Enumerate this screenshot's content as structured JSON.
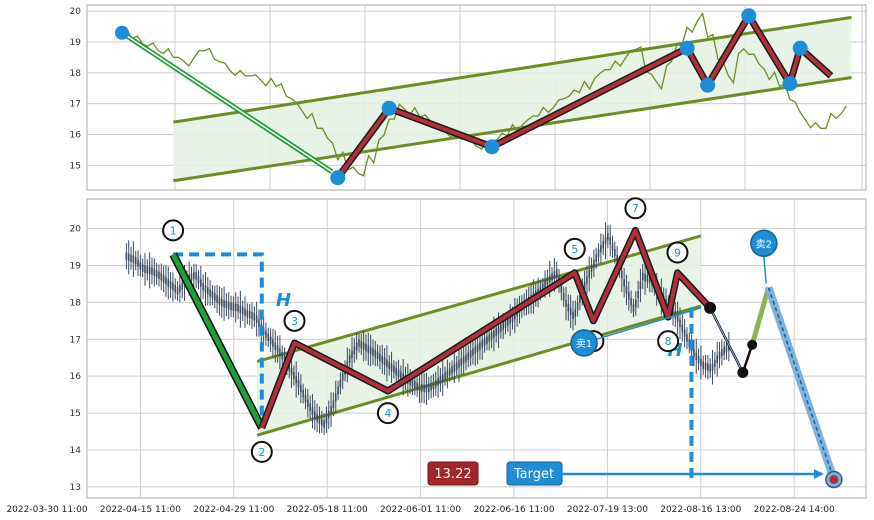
{
  "chart_data": [
    {
      "type": "line",
      "panel": "top",
      "ylim": [
        14.2,
        20.2
      ],
      "yticks": [
        15,
        16,
        17,
        18,
        19,
        20
      ],
      "grid": true,
      "series": [
        {
          "role": "close-line",
          "color": "#6b8e23",
          "values": [
            19.25,
            19.15,
            18.9,
            18.85,
            18.7,
            18.5,
            18.3,
            18.6,
            18.75,
            18.4,
            18.2,
            18.0,
            17.9,
            17.85,
            17.7,
            17.6,
            17.2,
            16.9,
            16.6,
            16.2,
            15.8,
            15.3,
            14.9,
            14.7,
            15.2,
            15.9,
            16.5,
            16.9,
            16.75,
            16.6,
            16.4,
            16.2,
            16.0,
            15.85,
            15.7,
            15.65,
            15.8,
            16.0,
            16.2,
            16.4,
            16.6,
            16.8,
            17.0,
            17.2,
            17.4,
            17.6,
            17.9,
            18.1,
            18.3,
            18.6,
            18.8,
            18.0,
            17.6,
            18.3,
            18.9,
            19.4,
            19.8,
            19.2,
            18.4,
            17.8,
            18.7,
            18.6,
            18.2,
            17.9,
            17.6,
            17.1,
            16.6,
            16.3,
            16.2,
            16.6,
            16.8
          ]
        }
      ],
      "channel_upper": [
        [
          6,
          16.4
        ],
        [
          72,
          19.8
        ]
      ],
      "channel_lower": [
        [
          6,
          14.5
        ],
        [
          72,
          17.85
        ]
      ],
      "zigzag": [
        [
          22,
          14.6
        ],
        [
          27,
          16.85
        ],
        [
          37,
          15.6
        ],
        [
          56,
          18.8
        ],
        [
          58,
          17.6
        ],
        [
          62,
          19.85
        ],
        [
          66,
          17.65
        ],
        [
          67,
          18.8
        ],
        [
          70,
          17.9
        ]
      ],
      "markers": [
        [
          22,
          14.6
        ],
        [
          27,
          16.85
        ],
        [
          37,
          15.6
        ],
        [
          56,
          18.8
        ],
        [
          58,
          17.6
        ],
        [
          62,
          19.85
        ],
        [
          66,
          17.65
        ],
        [
          67,
          18.8
        ]
      ],
      "green_arrow": [
        [
          1,
          19.3
        ],
        [
          22,
          14.6
        ]
      ],
      "start_marker": [
        1,
        19.3
      ]
    },
    {
      "type": "candlestick",
      "panel": "bottom",
      "ylim": [
        12.7,
        20.8
      ],
      "yticks": [
        13,
        14,
        15,
        16,
        17,
        18,
        19,
        20
      ],
      "grid": true,
      "x_labels": [
        "2022-03-30 11:00",
        "2022-04-15 11:00",
        "2022-04-29 11:00",
        "2022-05-18 11:00",
        "2022-06-01 11:00",
        "2022-06-16 11:00",
        "2022-07-19 13:00",
        "2022-08-16 13:00",
        "2022-08-24 14:00"
      ],
      "x_label_index": [
        0,
        2,
        4,
        6,
        8,
        10,
        12,
        14,
        16
      ],
      "points": [
        {
          "label": "1",
          "x": 2.7,
          "y": 19.3,
          "label_y": 19.95
        },
        {
          "label": "2",
          "x": 4.6,
          "y": 14.6,
          "label_y": 13.95
        },
        {
          "label": "3",
          "x": 5.3,
          "y": 16.9,
          "label_y": 17.5
        },
        {
          "label": "4",
          "x": 7.3,
          "y": 15.6,
          "label_y": 15.0
        },
        {
          "label": "5",
          "x": 11.3,
          "y": 18.8,
          "label_y": 19.45
        },
        {
          "label": "6",
          "x": 11.7,
          "y": 17.5,
          "label_y": 16.95
        },
        {
          "label": "7",
          "x": 12.6,
          "y": 19.95,
          "label_y": 20.55
        },
        {
          "label": "8",
          "x": 13.3,
          "y": 17.6,
          "label_y": 16.95
        },
        {
          "label": "9",
          "x": 13.5,
          "y": 18.8,
          "label_y": 19.35
        }
      ],
      "zigzag": [
        [
          4.6,
          14.6
        ],
        [
          5.3,
          16.9
        ],
        [
          7.3,
          15.6
        ],
        [
          11.3,
          18.8
        ],
        [
          11.7,
          17.5
        ],
        [
          12.6,
          19.95
        ],
        [
          13.3,
          17.6
        ],
        [
          13.5,
          18.8
        ],
        [
          14.2,
          17.85
        ]
      ],
      "drop_line": [
        [
          2.7,
          19.3
        ],
        [
          4.6,
          14.6
        ]
      ],
      "channel_upper": [
        [
          4.5,
          16.4
        ],
        [
          14.0,
          19.8
        ]
      ],
      "channel_lower": [
        [
          4.5,
          14.4
        ],
        [
          14.0,
          17.9
        ]
      ],
      "h_box_left": {
        "top": 19.3,
        "right_x": 4.6,
        "bottom": 14.6,
        "label": "H"
      },
      "h_box_right": {
        "x": 13.8,
        "top": 17.85,
        "bottom": 13.2,
        "label": "H"
      },
      "forecast": [
        [
          14.2,
          17.85
        ],
        [
          14.9,
          16.1
        ],
        [
          15.1,
          16.85
        ],
        [
          15.45,
          18.4
        ],
        [
          16.85,
          13.2
        ]
      ],
      "sell_points": [
        {
          "label": "卖1",
          "x": 11.5,
          "y": 16.9
        },
        {
          "label": "卖2",
          "x": 15.35,
          "y": 19.6
        }
      ],
      "target": {
        "label": "Target",
        "value_label": "13.22",
        "value": 13.22,
        "x_end": 16.85
      }
    }
  ],
  "colors": {
    "grid": "#cccccc",
    "channel": "#6b8e23",
    "channel_fill": "#e3f1e3",
    "zigzag_outer": "#1a1a1a",
    "zigzag_inner": "#b0303a",
    "marker": "#1f8dd6",
    "blue_dashed": "#1f8dd6",
    "green_drop": "#1f9e3a",
    "candle": "#3a4a60",
    "value_box": "#a32626",
    "target_box": "#1f8dd6"
  }
}
